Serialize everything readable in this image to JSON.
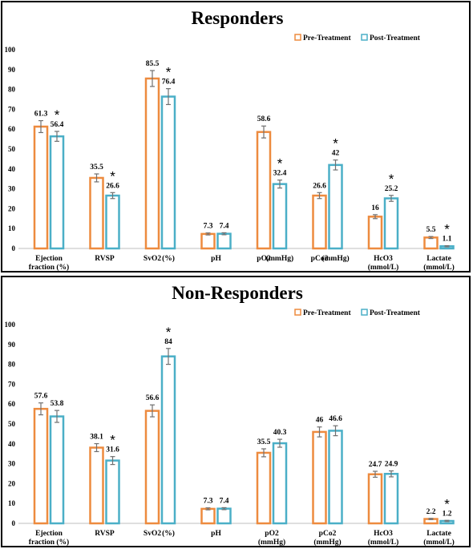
{
  "legend": {
    "pre": "Pre-Treatment",
    "post": "Post-Treatment"
  },
  "colors": {
    "pre": "#ED8B3F",
    "post": "#4BAFC7",
    "error": "#707070"
  },
  "chart_data": [
    {
      "type": "bar",
      "title": "Responders",
      "ylim": [
        0,
        100
      ],
      "yticks": [
        0,
        10,
        20,
        30,
        40,
        50,
        60,
        70,
        80,
        90,
        100
      ],
      "legend_position": "top-right",
      "categories": [
        {
          "line1": "Ejection",
          "line2": "fraction (%)"
        },
        {
          "line1": "RVSP",
          "line2": ""
        },
        {
          "line1": "SvO2",
          "line2": ""
        },
        {
          "line1": "pH",
          "line2": ""
        },
        {
          "line1": "pO2",
          "line2": ""
        },
        {
          "line1": "pCo2",
          "line2": ""
        },
        {
          "line1": "HcO3",
          "line2": "(mmol/L)"
        },
        {
          "line1": "Lactate",
          "line2": "(mmol/L)"
        }
      ],
      "unit_labels": [
        {
          "text": "(%)",
          "category": 2
        },
        {
          "text": "(mmHg)",
          "category": 4
        },
        {
          "text": "(mmHg)",
          "category": 5
        }
      ],
      "series": [
        {
          "name": "Pre-Treatment",
          "values": [
            61.3,
            35.5,
            85.5,
            7.3,
            58.6,
            26.6,
            16,
            5.5
          ],
          "errors": [
            3,
            2,
            4,
            0.5,
            3,
            1.5,
            1,
            0.5
          ],
          "labels": [
            "61.3",
            "35.5",
            "85.5",
            "7.3",
            "58.6",
            "26.6",
            "16",
            "5.5"
          ]
        },
        {
          "name": "Post-Treatment",
          "values": [
            56.4,
            26.6,
            76.4,
            7.4,
            32.4,
            42,
            25.2,
            1.1
          ],
          "errors": [
            2.5,
            1.5,
            4,
            0.5,
            2,
            2.5,
            1.5,
            0.3
          ],
          "labels": [
            "56.4",
            "26.6",
            "76.4",
            "7.4",
            "32.4",
            "42",
            "25.2",
            "1.1"
          ]
        }
      ],
      "significance": [
        true,
        true,
        true,
        false,
        true,
        true,
        true,
        true
      ]
    },
    {
      "type": "bar",
      "title": "Non-Responders",
      "ylim": [
        0,
        100
      ],
      "yticks": [
        0,
        10,
        20,
        30,
        40,
        50,
        60,
        70,
        80,
        90,
        100
      ],
      "legend_position": "top-right",
      "categories": [
        {
          "line1": "Ejection",
          "line2": "fraction (%)"
        },
        {
          "line1": "RVSP",
          "line2": ""
        },
        {
          "line1": "SvO2",
          "line2": ""
        },
        {
          "line1": "pH",
          "line2": ""
        },
        {
          "line1": "pO2",
          "line2": "(mmHg)"
        },
        {
          "line1": "pCo2",
          "line2": "(mmHg)"
        },
        {
          "line1": "HcO3",
          "line2": "(mmol/L)"
        },
        {
          "line1": "Lactate",
          "line2": "(mmol/L)"
        }
      ],
      "unit_labels": [
        {
          "text": "(%)",
          "category": 2
        }
      ],
      "series": [
        {
          "name": "Pre-Treatment",
          "values": [
            57.6,
            38.1,
            56.6,
            7.3,
            35.5,
            46,
            24.7,
            2.2
          ],
          "errors": [
            3,
            2,
            3,
            0.5,
            2,
            2.5,
            1.5,
            0.3
          ],
          "labels": [
            "57.6",
            "38.1",
            "56.6",
            "7.3",
            "35.5",
            "46",
            "24.7",
            "2.2"
          ]
        },
        {
          "name": "Post-Treatment",
          "values": [
            53.8,
            31.6,
            84,
            7.4,
            40.3,
            46.6,
            24.9,
            1.2
          ],
          "errors": [
            3,
            2,
            4,
            0.5,
            2,
            2.5,
            1.5,
            0.3
          ],
          "labels": [
            "53.8",
            "31.6",
            "84",
            "7.4",
            "40.3",
            "46.6",
            "24.9",
            "1.2"
          ]
        }
      ],
      "significance": [
        false,
        true,
        true,
        false,
        false,
        false,
        false,
        true
      ]
    }
  ]
}
